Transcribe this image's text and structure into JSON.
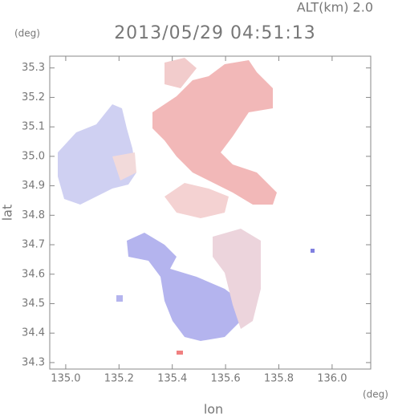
{
  "chart_data": {
    "type": "map",
    "title": "2013/05/29 04:51:13",
    "subtitle": "ALT(km) 2.0",
    "x_label": "lon",
    "y_label": "lat",
    "x_unit": "(deg)",
    "y_unit": "(deg)",
    "xlim": [
      134.94,
      136.145
    ],
    "ylim": [
      34.278,
      35.34
    ],
    "xticks": [
      {
        "value": 135,
        "label": "135.0"
      },
      135.2,
      135.4,
      135.6,
      135.8,
      {
        "value": 136,
        "label": "136.0"
      }
    ],
    "yticks": [
      34.3,
      34.4,
      34.5,
      34.6,
      34.7,
      34.8,
      34.9,
      {
        "value": 35,
        "label": "35.0"
      },
      35.1,
      35.2,
      35.3
    ]
  }
}
